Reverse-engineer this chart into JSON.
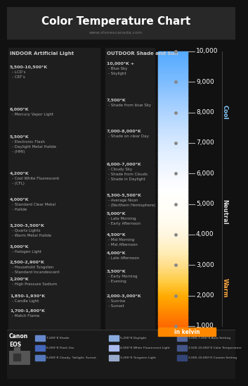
{
  "title": "Color Temperature Chart",
  "subtitle": "www.shorescanada.com",
  "bg_color": "#111111",
  "title_bg": "#2a2a2a",
  "panel_bg": "#222222",
  "title_color": "#ffffff",
  "subtitle_color": "#888888",
  "text_color": "#cccccc",
  "desc_color": "#aaaaaa",
  "kelvin_ticks": [
    1000,
    2000,
    3000,
    4000,
    5000,
    6000,
    7000,
    8000,
    9000,
    10000
  ],
  "kelvin_min": 1000,
  "kelvin_max": 10000,
  "color_bar_colors": [
    [
      1000,
      "#ff6600"
    ],
    [
      1500,
      "#ff8800"
    ],
    [
      2000,
      "#ffaa00"
    ],
    [
      2500,
      "#ffcc44"
    ],
    [
      3000,
      "#ffdd88"
    ],
    [
      3500,
      "#ffeebb"
    ],
    [
      4000,
      "#fff5dd"
    ],
    [
      4500,
      "#fffcf0"
    ],
    [
      5000,
      "#fffef8"
    ],
    [
      5500,
      "#ffffff"
    ],
    [
      6000,
      "#f5f8ff"
    ],
    [
      6500,
      "#e8f2ff"
    ],
    [
      7000,
      "#d8eaff"
    ],
    [
      7500,
      "#c5e0ff"
    ],
    [
      8000,
      "#b0d5ff"
    ],
    [
      8500,
      "#99caff"
    ],
    [
      9000,
      "#80beff"
    ],
    [
      9500,
      "#6ab4ff"
    ],
    [
      10000,
      "#55aaff"
    ]
  ],
  "zones": [
    {
      "label": "Cool",
      "k_min": 6000,
      "k_max": 10000,
      "color": "#88ccff"
    },
    {
      "label": "Neutral",
      "k_min": 3500,
      "k_max": 6000,
      "color": "#dddddd"
    },
    {
      "label": "Warm",
      "k_min": 1000,
      "k_max": 3500,
      "color": "#ffaa44"
    }
  ],
  "indoor_header": "INDOOR Artificial Light",
  "indoor_items": [
    {
      "temp": "5,500-10,500°K",
      "k": 9500,
      "desc": [
        "LCD’s",
        "CRT’s"
      ]
    },
    {
      "temp": "6,000°K",
      "k": 8100,
      "desc": [
        "Mercury Vapor Light"
      ]
    },
    {
      "temp": "5,500°K",
      "k": 7200,
      "desc": [
        "Electronic Flash",
        "Daylight Metal Halide",
        "(HMI)"
      ]
    },
    {
      "temp": "4,200°K",
      "k": 6000,
      "desc": [
        "Cool White Fluorescent",
        "(CFL)"
      ]
    },
    {
      "temp": "4,000°K",
      "k": 5150,
      "desc": [
        "Standard Clear Metal",
        "Halide"
      ]
    },
    {
      "temp": "3,200-3,500°K",
      "k": 4300,
      "desc": [
        "Quartz Lights",
        "Warm Metal Halide"
      ]
    },
    {
      "temp": "3,000°K",
      "k": 3600,
      "desc": [
        "Halogen Light"
      ]
    },
    {
      "temp": "2,500-2,900°K",
      "k": 3100,
      "desc": [
        "Household Tungsten",
        "Standard Incandescent"
      ]
    },
    {
      "temp": "2,200°K",
      "k": 2550,
      "desc": [
        "High Pressure Sodium"
      ]
    },
    {
      "temp": "1,850-1,930°K",
      "k": 2000,
      "desc": [
        "Candle Light"
      ]
    },
    {
      "temp": "1,700-1,800°K",
      "k": 1500,
      "desc": [
        "Match Flame"
      ]
    }
  ],
  "outdoor_header": "OUTDOOR Shade and Sun",
  "outdoor_items": [
    {
      "temp": "10,000°K +",
      "k": 9600,
      "desc": [
        "Blue Sky",
        "Skylight"
      ]
    },
    {
      "temp": "7,500°K",
      "k": 8400,
      "desc": [
        "Shade from blue Sky"
      ]
    },
    {
      "temp": "7,000-8,000°K",
      "k": 7400,
      "desc": [
        "Shade on clear Day"
      ]
    },
    {
      "temp": "6,000-7,000°K",
      "k": 6300,
      "desc": [
        "Cloudy Sky",
        "Shade from Clouds",
        "Shade in Daylight"
      ]
    },
    {
      "temp": "5,300-5,500°K",
      "k": 5300,
      "desc": [
        "Average Noon",
        "(Northern Hemisphere)"
      ]
    },
    {
      "temp": "5,000°K",
      "k": 4700,
      "desc": [
        "Late Morning",
        "Early Afternoon"
      ]
    },
    {
      "temp": "4,500°K",
      "k": 4000,
      "desc": [
        "Mid Morning",
        "Mid Afternoon"
      ]
    },
    {
      "temp": "4,000°K",
      "k": 3400,
      "desc": [
        "Late Afternoon"
      ]
    },
    {
      "temp": "3,500°K",
      "k": 2800,
      "desc": [
        "Early Morning",
        "Evening"
      ]
    },
    {
      "temp": "2,000-3,000°K",
      "k": 2000,
      "desc": [
        "Sunrise",
        "Sunset"
      ]
    }
  ],
  "in_kelvin_bg": "#ff8800",
  "in_kelvin_text": "in kelvin",
  "canon_items_col1": [
    {
      "color": "#6688cc",
      "text": "7,000°K Shade"
    },
    {
      "color": "#4466bb",
      "text": "6,000°K Flash Use"
    },
    {
      "color": "#5577bb",
      "text": "6,000°K Cloudy, Twilight, Sunset"
    }
  ],
  "canon_items_col2": [
    {
      "color": "#88aadd",
      "text": "5,200°K Daylight"
    },
    {
      "color": "#aabbee",
      "text": "4,000°K White Fluorescent Light"
    },
    {
      "color": "#99aacc",
      "text": "3,200°K Tungsten Light"
    }
  ],
  "canon_items_col3": [
    {
      "color": "#556699",
      "text": "3,000-7,000°K Auto Setting"
    },
    {
      "color": "#445588",
      "text": "2,500-10,000°K Color Temperature"
    },
    {
      "color": "#334477",
      "text": "2,000-10,000°K Custom Setting"
    }
  ]
}
